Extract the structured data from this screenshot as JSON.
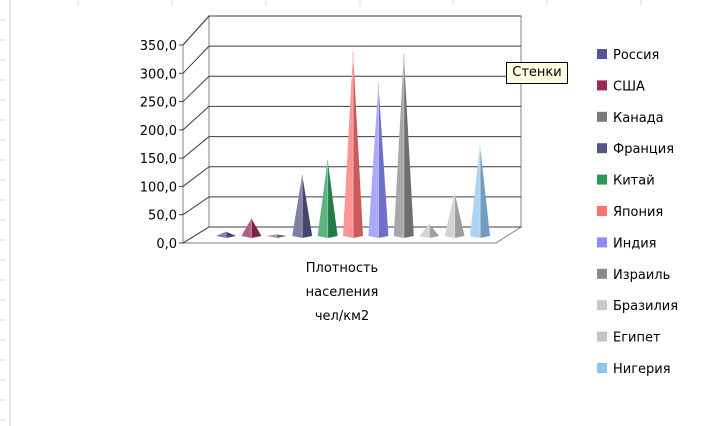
{
  "tooltip": "Стенки",
  "colors": {
    "wall_line": "#808080",
    "grid_line": "#3c3c3c",
    "axis_text": "#000000"
  },
  "chart_data": {
    "type": "bar",
    "variant": "3d-pyramid",
    "categories": [
      "Плотность\nнаселения\nчел/км2"
    ],
    "category_lines": [
      "Плотность",
      "населения",
      "чел/км2"
    ],
    "series": [
      {
        "name": "Россия",
        "values": [
          8
        ],
        "color": "#55559a"
      },
      {
        "name": "США",
        "values": [
          32
        ],
        "color": "#9a2a5a"
      },
      {
        "name": "Канада",
        "values": [
          3
        ],
        "color": "#7a7a7a"
      },
      {
        "name": "Франция",
        "values": [
          112
        ],
        "color": "#555588"
      },
      {
        "name": "Китай",
        "values": [
          139
        ],
        "color": "#2a9a5a"
      },
      {
        "name": "Япония",
        "values": [
          337
        ],
        "color": "#ff7070"
      },
      {
        "name": "Индия",
        "values": [
          280
        ],
        "color": "#8c8cff"
      },
      {
        "name": "Израиль",
        "values": [
          333
        ],
        "color": "#8a8a8a"
      },
      {
        "name": "Бразилия",
        "values": [
          22
        ],
        "color": "#c8c8c8"
      },
      {
        "name": "Египет",
        "values": [
          79
        ],
        "color": "#c4c4c4"
      },
      {
        "name": "Нигерия",
        "values": [
          167
        ],
        "color": "#8fc4f0"
      }
    ],
    "yticks": [
      "0,0",
      "50,0",
      "100,0",
      "150,0",
      "200,0",
      "250,0",
      "300,0",
      "350,0"
    ],
    "ylim": [
      0,
      350
    ],
    "grid": true,
    "legend": "right"
  }
}
